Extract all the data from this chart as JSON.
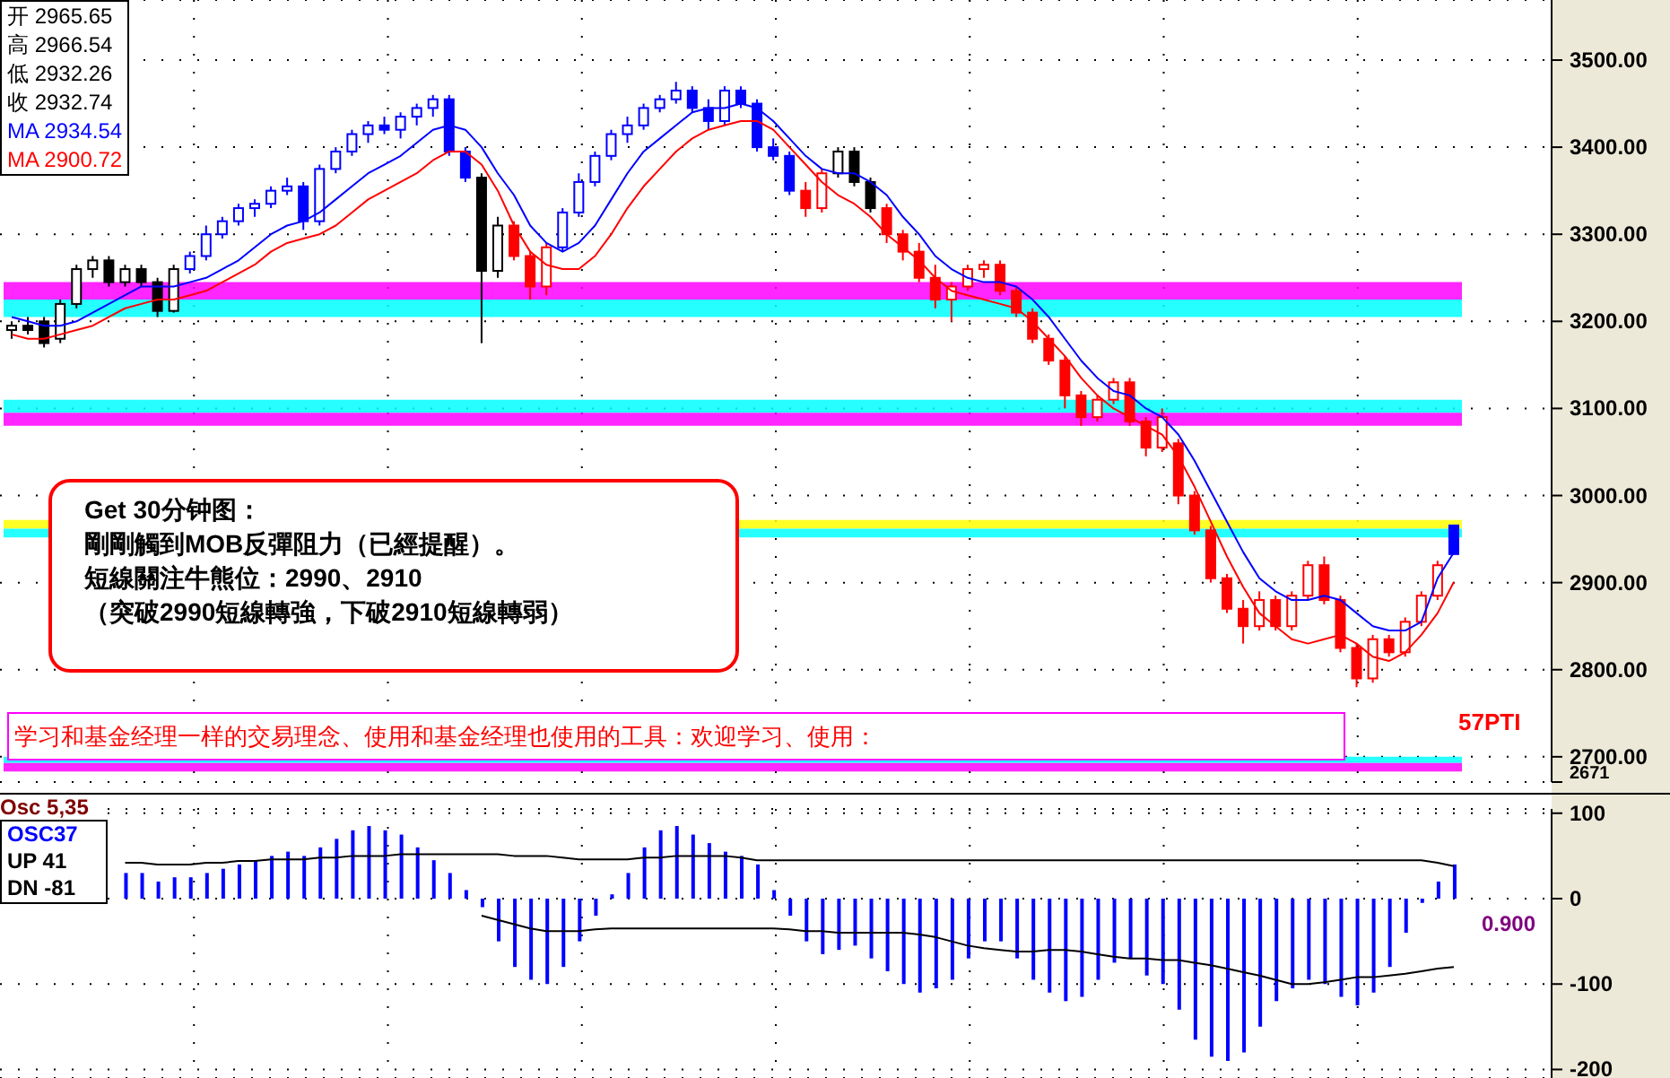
{
  "chart_data": [
    {
      "type": "candlestick",
      "categories": [
        null,
        null,
        null,
        null,
        null,
        null,
        null,
        null,
        null,
        null,
        null,
        null,
        null,
        null,
        null,
        null,
        null,
        null,
        null,
        null,
        null,
        null,
        null,
        null,
        null,
        null,
        null,
        null,
        null,
        null,
        null,
        null,
        null,
        null,
        null,
        null,
        null,
        null,
        null,
        null,
        null,
        null,
        null,
        null,
        null,
        null,
        null,
        null,
        null,
        null,
        null,
        null,
        null,
        null,
        null,
        null,
        null,
        null,
        null,
        null,
        null,
        null,
        null,
        null,
        null,
        null,
        null,
        null,
        null,
        null,
        null,
        null,
        null,
        null,
        null,
        null,
        null,
        null,
        null,
        null,
        null,
        null,
        null,
        null,
        null,
        null,
        null,
        null,
        null,
        null
      ],
      "ohlc": [
        [
          3190,
          3200,
          3180,
          3195
        ],
        [
          3195,
          3205,
          3185,
          3190
        ],
        [
          3200,
          3205,
          3170,
          3175
        ],
        [
          3180,
          3225,
          3175,
          3220
        ],
        [
          3220,
          3265,
          3215,
          3260
        ],
        [
          3260,
          3275,
          3250,
          3270
        ],
        [
          3270,
          3275,
          3240,
          3245
        ],
        [
          3245,
          3265,
          3240,
          3260
        ],
        [
          3260,
          3265,
          3240,
          3245
        ],
        [
          3245,
          3250,
          3205,
          3212
        ],
        [
          3212,
          3265,
          3210,
          3260
        ],
        [
          3260,
          3280,
          3255,
          3275
        ],
        [
          3275,
          3310,
          3270,
          3300
        ],
        [
          3300,
          3320,
          3295,
          3315
        ],
        [
          3315,
          3335,
          3310,
          3330
        ],
        [
          3330,
          3340,
          3320,
          3335
        ],
        [
          3335,
          3355,
          3330,
          3350
        ],
        [
          3350,
          3365,
          3345,
          3355
        ],
        [
          3355,
          3360,
          3305,
          3315
        ],
        [
          3315,
          3380,
          3310,
          3375
        ],
        [
          3375,
          3400,
          3370,
          3395
        ],
        [
          3395,
          3420,
          3390,
          3415
        ],
        [
          3415,
          3430,
          3405,
          3425
        ],
        [
          3425,
          3435,
          3415,
          3420
        ],
        [
          3420,
          3440,
          3410,
          3435
        ],
        [
          3435,
          3450,
          3425,
          3445
        ],
        [
          3445,
          3460,
          3435,
          3455
        ],
        [
          3455,
          3460,
          3390,
          3395
        ],
        [
          3395,
          3400,
          3360,
          3365
        ],
        [
          3365,
          3370,
          3175,
          3258
        ],
        [
          3258,
          3320,
          3250,
          3310
        ],
        [
          3310,
          3315,
          3270,
          3275
        ],
        [
          3275,
          3280,
          3225,
          3240
        ],
        [
          3240,
          3290,
          3230,
          3285
        ],
        [
          3285,
          3330,
          3280,
          3325
        ],
        [
          3325,
          3370,
          3320,
          3360
        ],
        [
          3360,
          3395,
          3355,
          3390
        ],
        [
          3390,
          3420,
          3385,
          3415
        ],
        [
          3415,
          3435,
          3405,
          3425
        ],
        [
          3425,
          3450,
          3420,
          3445
        ],
        [
          3445,
          3460,
          3440,
          3455
        ],
        [
          3455,
          3475,
          3450,
          3465
        ],
        [
          3465,
          3470,
          3440,
          3445
        ],
        [
          3445,
          3455,
          3420,
          3430
        ],
        [
          3430,
          3470,
          3425,
          3465
        ],
        [
          3465,
          3470,
          3445,
          3450
        ],
        [
          3450,
          3455,
          3395,
          3400
        ],
        [
          3400,
          3410,
          3385,
          3390
        ],
        [
          3390,
          3395,
          3345,
          3350
        ],
        [
          3350,
          3360,
          3320,
          3330
        ],
        [
          3330,
          3375,
          3325,
          3370
        ],
        [
          3370,
          3400,
          3365,
          3395
        ],
        [
          3395,
          3400,
          3355,
          3360
        ],
        [
          3360,
          3365,
          3325,
          3330
        ],
        [
          3330,
          3335,
          3290,
          3300
        ],
        [
          3300,
          3305,
          3270,
          3280
        ],
        [
          3280,
          3290,
          3245,
          3250
        ],
        [
          3250,
          3265,
          3215,
          3225
        ],
        [
          3225,
          3245,
          3200,
          3240
        ],
        [
          3240,
          3265,
          3235,
          3260
        ],
        [
          3260,
          3270,
          3250,
          3265
        ],
        [
          3265,
          3270,
          3230,
          3235
        ],
        [
          3235,
          3240,
          3205,
          3210
        ],
        [
          3210,
          3215,
          3175,
          3180
        ],
        [
          3180,
          3185,
          3150,
          3155
        ],
        [
          3155,
          3160,
          3100,
          3115
        ],
        [
          3115,
          3120,
          3080,
          3090
        ],
        [
          3090,
          3115,
          3085,
          3110
        ],
        [
          3110,
          3135,
          3105,
          3130
        ],
        [
          3130,
          3135,
          3080,
          3085
        ],
        [
          3085,
          3090,
          3045,
          3055
        ],
        [
          3055,
          3100,
          3050,
          3090
        ],
        [
          3060,
          3065,
          2990,
          3000
        ],
        [
          3000,
          3005,
          2955,
          2960
        ],
        [
          2960,
          2965,
          2900,
          2905
        ],
        [
          2905,
          2910,
          2865,
          2870
        ],
        [
          2870,
          2880,
          2830,
          2850
        ],
        [
          2850,
          2890,
          2845,
          2880
        ],
        [
          2880,
          2885,
          2845,
          2850
        ],
        [
          2850,
          2890,
          2845,
          2885
        ],
        [
          2885,
          2925,
          2880,
          2920
        ],
        [
          2920,
          2930,
          2875,
          2880
        ],
        [
          2880,
          2885,
          2820,
          2825
        ],
        [
          2825,
          2830,
          2780,
          2790
        ],
        [
          2790,
          2840,
          2785,
          2835
        ],
        [
          2835,
          2840,
          2815,
          2820
        ],
        [
          2820,
          2860,
          2815,
          2855
        ],
        [
          2855,
          2890,
          2850,
          2885
        ],
        [
          2885,
          2925,
          2880,
          2920
        ],
        [
          2965.65,
          2966.54,
          2932.26,
          2932.74
        ]
      ],
      "colors": [
        "#000000",
        "#000000",
        "#000000",
        "#000000",
        "#000000",
        "#000000",
        "#000000",
        "#000000",
        "#000000",
        "#000000",
        "#000000",
        "#0000ff",
        "#0000ff",
        "#0000ff",
        "#0000ff",
        "#0000ff",
        "#0000ff",
        "#0000ff",
        "#0000ff",
        "#0000ff",
        "#0000ff",
        "#0000ff",
        "#0000ff",
        "#0000ff",
        "#0000ff",
        "#0000ff",
        "#0000ff",
        "#0000ff",
        "#0000ff",
        "#000000",
        "#000000",
        "#ff0000",
        "#ff0000",
        "#ff0000",
        "#0000ff",
        "#0000ff",
        "#0000ff",
        "#0000ff",
        "#0000ff",
        "#0000ff",
        "#0000ff",
        "#0000ff",
        "#0000ff",
        "#0000ff",
        "#0000ff",
        "#0000ff",
        "#0000ff",
        "#0000ff",
        "#0000ff",
        "#ff0000",
        "#ff0000",
        "#000000",
        "#000000",
        "#000000",
        "#ff0000",
        "#ff0000",
        "#ff0000",
        "#ff0000",
        "#ff0000",
        "#ff0000",
        "#ff0000",
        "#ff0000",
        "#ff0000",
        "#ff0000",
        "#ff0000",
        "#ff0000",
        "#ff0000",
        "#ff0000",
        "#ff0000",
        "#ff0000",
        "#ff0000",
        "#ff0000",
        "#ff0000",
        "#ff0000",
        "#ff0000",
        "#ff0000",
        "#ff0000",
        "#ff0000",
        "#ff0000",
        "#ff0000",
        "#ff0000",
        "#ff0000",
        "#ff0000",
        "#ff0000",
        "#ff0000",
        "#ff0000",
        "#ff0000",
        "#ff0000",
        "#ff0000",
        "#0000ff"
      ],
      "series": [
        {
          "type": "line",
          "color": "#0000ff",
          "values": [
            3205,
            3200,
            3195,
            3195,
            3200,
            3210,
            3220,
            3230,
            3240,
            3240,
            3240,
            3245,
            3250,
            3260,
            3270,
            3285,
            3300,
            3310,
            3315,
            3325,
            3340,
            3355,
            3370,
            3380,
            3390,
            3405,
            3420,
            3425,
            3420,
            3400,
            3370,
            3345,
            3310,
            3290,
            3280,
            3290,
            3310,
            3340,
            3370,
            3395,
            3410,
            3425,
            3440,
            3445,
            3445,
            3450,
            3445,
            3430,
            3410,
            3390,
            3375,
            3370,
            3370,
            3360,
            3345,
            3320,
            3300,
            3275,
            3260,
            3250,
            3245,
            3245,
            3240,
            3225,
            3205,
            3180,
            3155,
            3135,
            3120,
            3115,
            3100,
            3090,
            3070,
            3040,
            3005,
            2970,
            2935,
            2905,
            2890,
            2880,
            2880,
            2885,
            2880,
            2865,
            2850,
            2845,
            2845,
            2855,
            2905,
            2934.54
          ]
        },
        {
          "type": "line",
          "color": "#ff0000",
          "values": [
            3185,
            3180,
            3180,
            3185,
            3190,
            3195,
            3205,
            3215,
            3220,
            3225,
            3225,
            3230,
            3235,
            3245,
            3255,
            3265,
            3280,
            3290,
            3295,
            3300,
            3310,
            3325,
            3340,
            3350,
            3360,
            3370,
            3385,
            3395,
            3395,
            3380,
            3350,
            3310,
            3280,
            3265,
            3260,
            3260,
            3275,
            3300,
            3330,
            3355,
            3375,
            3395,
            3410,
            3420,
            3425,
            3430,
            3430,
            3420,
            3400,
            3380,
            3360,
            3345,
            3335,
            3320,
            3300,
            3285,
            3270,
            3250,
            3235,
            3230,
            3225,
            3220,
            3215,
            3200,
            3180,
            3160,
            3135,
            3115,
            3100,
            3090,
            3080,
            3070,
            3045,
            3010,
            2970,
            2930,
            2895,
            2865,
            2850,
            2835,
            2830,
            2835,
            2840,
            2830,
            2815,
            2810,
            2820,
            2840,
            2865,
            2900.72
          ]
        }
      ],
      "bands": [
        {
          "axis": "y",
          "from": 3095,
          "to": 3110,
          "color": "#00ffff"
        },
        {
          "axis": "y",
          "from": 3080,
          "to": 3095,
          "color": "#ff00ff"
        },
        {
          "axis": "y",
          "from": 3225,
          "to": 3245,
          "color": "#ff00ff"
        },
        {
          "axis": "y",
          "from": 3205,
          "to": 3225,
          "color": "#00ffff"
        },
        {
          "axis": "y",
          "from": 2962,
          "to": 2972,
          "color": "#ffff00"
        },
        {
          "axis": "y",
          "from": 2952,
          "to": 2962,
          "color": "#00ffff"
        },
        {
          "axis": "y",
          "from": 2693,
          "to": 2700,
          "color": "#00ffff"
        },
        {
          "axis": "y",
          "from": 2683,
          "to": 2693,
          "color": "#ff00ff"
        }
      ],
      "ylim": [
        2671,
        3569
      ],
      "yticks": [
        {
          "value": 2671,
          "label": "2671"
        },
        {
          "value": 2700,
          "label": "2700.00"
        },
        {
          "value": 2800,
          "label": "2800.00"
        },
        {
          "value": 2900,
          "label": "2900.00"
        },
        {
          "value": 3000,
          "label": "3000.00"
        },
        {
          "value": 3100,
          "label": "3100.00"
        },
        {
          "value": 3200,
          "label": "3200.00"
        },
        {
          "value": 3300,
          "label": "3300.00"
        },
        {
          "value": 3400,
          "label": "3400.00"
        },
        {
          "value": 3500,
          "label": "3500.00"
        }
      ],
      "grid": true,
      "legend": false,
      "tick_labels": "y",
      "annotations": [
        "开 2965.65",
        "高 2966.54",
        "低 2932.26",
        "收 2932.74",
        "MA 2934.54",
        "MA 2900.72",
        "Get 30分钟图：",
        "剛剛觸到MOB反彈阻力（已經提醒）。",
        "短線關注牛熊位：2990、2910",
        "（突破2990短線轉強，下破2910短線轉弱）",
        "学习和基金经理一样的交易理念、使用和基金经理也使用的工具：欢迎学习、使用：",
        "57PTI"
      ]
    },
    {
      "type": "bar",
      "categories": [
        null,
        null,
        null,
        null,
        null,
        null,
        null,
        null,
        null,
        null,
        null,
        null,
        null,
        null,
        null,
        null,
        null,
        null,
        null,
        null,
        null,
        null,
        null,
        null,
        null,
        null,
        null,
        null,
        null,
        null,
        null,
        null,
        null,
        null,
        null,
        null,
        null,
        null,
        null,
        null,
        null,
        null,
        null,
        null,
        null,
        null,
        null,
        null,
        null,
        null,
        null,
        null,
        null,
        null,
        null,
        null,
        null,
        null,
        null,
        null,
        null,
        null,
        null,
        null,
        null,
        null,
        null,
        null,
        null,
        null,
        null,
        null,
        null,
        null,
        null,
        null,
        null,
        null,
        null,
        null,
        null,
        null,
        null,
        null,
        null,
        null,
        null,
        null,
        null,
        null
      ],
      "series": [
        {
          "type": "bar",
          "color": "#0000ff",
          "values": [
            null,
            null,
            null,
            null,
            null,
            null,
            null,
            30,
            30,
            20,
            25,
            25,
            30,
            35,
            40,
            45,
            50,
            55,
            50,
            60,
            70,
            80,
            85,
            80,
            75,
            60,
            45,
            30,
            10,
            -10,
            -50,
            -80,
            -95,
            -100,
            -80,
            -50,
            -20,
            5,
            30,
            60,
            80,
            85,
            75,
            65,
            55,
            50,
            40,
            10,
            -20,
            -50,
            -65,
            -60,
            -55,
            -70,
            -85,
            -100,
            -110,
            -105,
            -95,
            -70,
            -50,
            -50,
            -70,
            -95,
            -110,
            -120,
            -115,
            -95,
            -75,
            -70,
            -90,
            -100,
            -130,
            -165,
            -185,
            -190,
            -180,
            -150,
            -120,
            -105,
            -95,
            -100,
            -115,
            -125,
            -110,
            -80,
            -40,
            -5,
            20,
            40
          ]
        },
        {
          "type": "line",
          "color": "#000000",
          "values": [
            null,
            null,
            null,
            null,
            null,
            null,
            null,
            42,
            42,
            40,
            40,
            40,
            42,
            42,
            44,
            44,
            46,
            46,
            46,
            48,
            48,
            50,
            50,
            50,
            52,
            52,
            52,
            52,
            52,
            52,
            52,
            50,
            50,
            50,
            48,
            46,
            46,
            46,
            46,
            48,
            48,
            50,
            50,
            50,
            50,
            48,
            45,
            45,
            45,
            45,
            45,
            45,
            45,
            45,
            45,
            45,
            45,
            45,
            45,
            45,
            45,
            45,
            45,
            45,
            45,
            45,
            45,
            45,
            45,
            45,
            45,
            45,
            45,
            45,
            45,
            45,
            45,
            45,
            45,
            45,
            45,
            45,
            45,
            45,
            45,
            45,
            45,
            45,
            42,
            38
          ]
        },
        {
          "type": "line",
          "color": "#000000",
          "values": [
            null,
            null,
            null,
            null,
            null,
            null,
            null,
            null,
            null,
            null,
            null,
            null,
            null,
            null,
            null,
            null,
            null,
            null,
            null,
            null,
            null,
            null,
            null,
            null,
            null,
            null,
            null,
            null,
            null,
            -20,
            -25,
            -30,
            -35,
            -38,
            -38,
            -38,
            -36,
            -35,
            -35,
            -35,
            -35,
            -35,
            -35,
            -35,
            -35,
            -35,
            -35,
            -35,
            -36,
            -38,
            -38,
            -40,
            -40,
            -40,
            -40,
            -40,
            -42,
            -45,
            -50,
            -55,
            -58,
            -60,
            -62,
            -62,
            -60,
            -60,
            -62,
            -65,
            -68,
            -70,
            -70,
            -72,
            -72,
            -75,
            -78,
            -82,
            -86,
            -90,
            -95,
            -100,
            -100,
            -98,
            -95,
            -92,
            -92,
            -90,
            -88,
            -85,
            -82,
            -80
          ]
        }
      ],
      "ylim": [
        -210,
        105
      ],
      "yticks": [
        -200,
        -100,
        0,
        100
      ],
      "grid": true,
      "legend": false,
      "tick_labels": "y",
      "annotations": [
        "Osc 5,35",
        "OSC37",
        "UP 41",
        "DN -81",
        "0.900"
      ]
    }
  ]
}
